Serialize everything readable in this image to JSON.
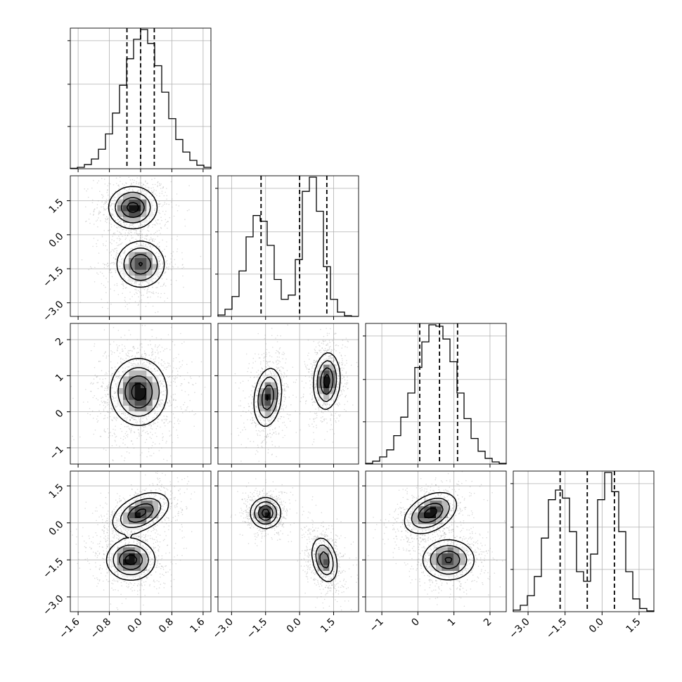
{
  "chart_data": {
    "type": "corner",
    "grid_lines": true,
    "variables": [
      {
        "range": [
          -1.8,
          1.8
        ],
        "ticks": [
          -1.6,
          -0.8,
          0.0,
          0.8,
          1.6
        ],
        "tick_labels": [
          "−1.6",
          "−0.8",
          "0.0",
          "0.8",
          "1.6"
        ],
        "quantiles": [
          -0.35,
          0.0,
          0.35
        ]
      },
      {
        "range": [
          -3.6,
          2.6
        ],
        "ticks": [
          -3.0,
          -1.5,
          0.0,
          1.5
        ],
        "tick_labels": [
          "−3.0",
          "−1.5",
          "0.0",
          "1.5"
        ],
        "quantiles": [
          -1.7,
          0.0,
          1.2
        ]
      },
      {
        "range": [
          -1.45,
          2.45
        ],
        "ticks": [
          -1,
          0,
          1,
          2
        ],
        "tick_labels": [
          "−1",
          "0",
          "1",
          "2"
        ],
        "quantiles": [
          0.05,
          0.6,
          1.1
        ]
      },
      {
        "range": [
          -3.6,
          2.1
        ],
        "ticks": [
          -3.0,
          -1.5,
          0.0,
          1.5
        ],
        "tick_labels": [
          "−3.0",
          "−1.5",
          "0.0",
          "1.5"
        ],
        "quantiles": [
          -1.7,
          -0.6,
          0.5
        ]
      }
    ],
    "histograms": [
      {
        "var": 0,
        "bin_start": -1.8,
        "bin_width": 0.18,
        "counts": [
          0.3,
          1.0,
          3.0,
          7.0,
          14.0,
          25.0,
          40.0,
          60.0,
          79.0,
          93.0,
          100.0,
          90.0,
          74.0,
          55.0,
          36.0,
          21.0,
          12.0,
          6.0,
          2.5,
          1.0
        ]
      },
      {
        "var": 1,
        "bin_start": -3.6,
        "bin_width": 0.31,
        "counts": [
          1.0,
          5.0,
          14.0,
          32.0,
          56.0,
          71.0,
          67.0,
          50.0,
          26.0,
          12.0,
          15.0,
          40.0,
          88.0,
          98.0,
          74.0,
          35.0,
          12.0,
          3.0,
          0.5,
          0.0
        ]
      },
      {
        "var": 2,
        "bin_start": -1.45,
        "bin_width": 0.195,
        "counts": [
          0.5,
          2.0,
          5.0,
          10.0,
          20.0,
          33.0,
          50.0,
          68.0,
          86.0,
          98.0,
          97.0,
          88.0,
          72.0,
          50.0,
          32.0,
          18.0,
          9.0,
          4.0,
          1.5,
          0.5
        ]
      },
      {
        "var": 3,
        "bin_start": -3.6,
        "bin_width": 0.285,
        "counts": [
          1.0,
          4.0,
          10.0,
          22.0,
          46.0,
          70.0,
          76.0,
          71.0,
          50.0,
          25.0,
          19.0,
          36.0,
          70.0,
          87.0,
          75.0,
          50.0,
          25.0,
          8.0,
          2.0,
          0.5
        ]
      }
    ],
    "pairs": [
      {
        "x": 0,
        "y": 1,
        "modes": [
          {
            "mx": -0.2,
            "my": 1.2,
            "sx": 0.3,
            "sy": 0.45,
            "rho": 0.0,
            "w": 0.5
          },
          {
            "mx": 0.0,
            "my": -1.3,
            "sx": 0.3,
            "sy": 0.5,
            "rho": 0.0,
            "w": 0.5
          }
        ]
      },
      {
        "x": 0,
        "y": 2,
        "modes": [
          {
            "mx": -0.05,
            "my": 0.55,
            "sx": 0.35,
            "sy": 0.45,
            "rho": 0.0,
            "w": 1.0
          }
        ]
      },
      {
        "x": 1,
        "y": 2,
        "modes": [
          {
            "mx": -1.4,
            "my": 0.4,
            "sx": 0.3,
            "sy": 0.4,
            "rho": 0.2,
            "w": 0.5
          },
          {
            "mx": 1.2,
            "my": 0.85,
            "sx": 0.28,
            "sy": 0.38,
            "rho": 0.1,
            "w": 0.5
          }
        ]
      },
      {
        "x": 0,
        "y": 3,
        "modes": [
          {
            "mx": 0.0,
            "my": 0.4,
            "sx": 0.35,
            "sy": 0.4,
            "rho": 0.45,
            "w": 0.5
          },
          {
            "mx": -0.25,
            "my": -1.5,
            "sx": 0.3,
            "sy": 0.4,
            "rho": 0.0,
            "w": 0.5
          }
        ]
      },
      {
        "x": 1,
        "y": 3,
        "modes": [
          {
            "mx": -1.5,
            "my": 0.4,
            "sx": 0.32,
            "sy": 0.3,
            "rho": 0.0,
            "w": 0.5
          },
          {
            "mx": 1.1,
            "my": -1.5,
            "sx": 0.28,
            "sy": 0.45,
            "rho": -0.3,
            "w": 0.5
          }
        ]
      },
      {
        "x": 2,
        "y": 3,
        "modes": [
          {
            "mx": 0.35,
            "my": 0.4,
            "sx": 0.35,
            "sy": 0.4,
            "rho": 0.4,
            "w": 0.5
          },
          {
            "mx": 0.85,
            "my": -1.5,
            "sx": 0.35,
            "sy": 0.4,
            "rho": 0.0,
            "w": 0.5
          }
        ]
      }
    ]
  }
}
